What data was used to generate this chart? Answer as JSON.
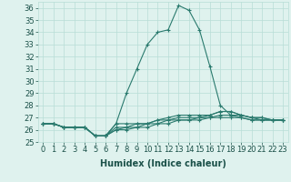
{
  "xlabel": "Humidex (Indice chaleur)",
  "x_values": [
    0,
    1,
    2,
    3,
    4,
    5,
    6,
    7,
    8,
    9,
    10,
    11,
    12,
    13,
    14,
    15,
    16,
    17,
    18,
    19,
    20,
    21,
    22,
    23
  ],
  "series": [
    [
      26.5,
      26.5,
      26.2,
      26.2,
      26.2,
      25.5,
      25.5,
      26.5,
      29.0,
      31.0,
      33.0,
      34.0,
      34.2,
      36.2,
      35.8,
      34.2,
      31.2,
      28.0,
      27.2,
      27.2,
      27.0,
      27.0,
      26.8,
      26.8
    ],
    [
      26.5,
      26.5,
      26.2,
      26.2,
      26.2,
      25.5,
      25.5,
      26.5,
      26.5,
      26.5,
      26.5,
      26.8,
      27.0,
      27.2,
      27.2,
      27.2,
      27.2,
      27.5,
      27.5,
      27.2,
      27.0,
      27.0,
      26.8,
      26.8
    ],
    [
      26.5,
      26.5,
      26.2,
      26.2,
      26.2,
      25.5,
      25.5,
      26.2,
      26.2,
      26.5,
      26.5,
      26.8,
      26.8,
      27.0,
      27.0,
      27.0,
      27.2,
      27.5,
      27.5,
      27.2,
      27.0,
      26.8,
      26.8,
      26.8
    ],
    [
      26.5,
      26.5,
      26.2,
      26.2,
      26.2,
      25.5,
      25.5,
      26.0,
      26.2,
      26.2,
      26.5,
      26.5,
      26.8,
      26.8,
      26.8,
      27.0,
      27.0,
      27.2,
      27.2,
      27.0,
      26.8,
      26.8,
      26.8,
      26.8
    ],
    [
      26.5,
      26.5,
      26.2,
      26.2,
      26.2,
      25.5,
      25.5,
      26.0,
      26.0,
      26.2,
      26.2,
      26.5,
      26.5,
      26.8,
      26.8,
      26.8,
      27.0,
      27.0,
      27.0,
      27.0,
      26.8,
      26.8,
      26.8,
      26.8
    ]
  ],
  "line_color": "#2a7a6e",
  "bg_color": "#dff2ee",
  "grid_color": "#b8ddd6",
  "ylim": [
    25.0,
    36.5
  ],
  "yticks": [
    25,
    26,
    27,
    28,
    29,
    30,
    31,
    32,
    33,
    34,
    35,
    36
  ],
  "xticks": [
    0,
    1,
    2,
    3,
    4,
    5,
    6,
    7,
    8,
    9,
    10,
    11,
    12,
    13,
    14,
    15,
    16,
    17,
    18,
    19,
    20,
    21,
    22,
    23
  ],
  "marker": "+",
  "marker_size": 3.5,
  "linewidth": 0.8,
  "tick_fontsize": 6.0,
  "xlabel_fontsize": 7.0
}
